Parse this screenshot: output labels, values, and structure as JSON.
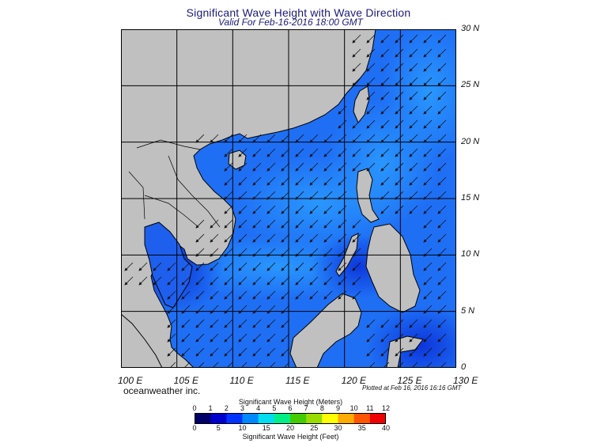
{
  "title": "Significant Wave Height with Wave Direction",
  "subtitle": "Valid For Feb-16-2016 18:00 GMT",
  "map": {
    "lon_range": [
      100,
      130
    ],
    "lat_range": [
      0,
      30
    ],
    "lat_labels": [
      {
        "lat": 30,
        "label": "30 N"
      },
      {
        "lat": 25,
        "label": "25 N"
      },
      {
        "lat": 20,
        "label": "20 N"
      },
      {
        "lat": 15,
        "label": "15 N"
      },
      {
        "lat": 10,
        "label": "10 N"
      },
      {
        "lat": 5,
        "label": "5 N"
      },
      {
        "lat": 0,
        "label": "0"
      }
    ],
    "lon_labels": [
      {
        "lon": 100,
        "label": "100 E"
      },
      {
        "lon": 105,
        "label": "105 E"
      },
      {
        "lon": 110,
        "label": "110 E"
      },
      {
        "lon": 115,
        "label": "115 E"
      },
      {
        "lon": 120,
        "label": "120 E"
      },
      {
        "lon": 125,
        "label": "125 E"
      },
      {
        "lon": 130,
        "label": "130 E"
      }
    ],
    "land_color": "#c0c0c0",
    "wave_arrow_direction": "towards south-west (NE monsoon)"
  },
  "credit": "oceanweather inc.",
  "plotted": "Plotted at Feb 16, 2016 16:16 GMT",
  "legend": {
    "title_meters": "Significant Wave Height (Meters)",
    "title_feet": "Significant Wave Height (Feet)",
    "meters_ticks": [
      "0",
      "1",
      "2",
      "3",
      "4",
      "5",
      "6",
      "7",
      "8",
      "9",
      "10",
      "11",
      "12"
    ],
    "feet_ticks": [
      "0",
      "5",
      "10",
      "15",
      "20",
      "25",
      "30",
      "35",
      "40"
    ],
    "colors": [
      "#000066",
      "#0000cc",
      "#0033ff",
      "#0088ff",
      "#00ddee",
      "#00ee88",
      "#44cc00",
      "#99dd00",
      "#ffff00",
      "#ffaa00",
      "#ff5500",
      "#ee0000"
    ]
  }
}
